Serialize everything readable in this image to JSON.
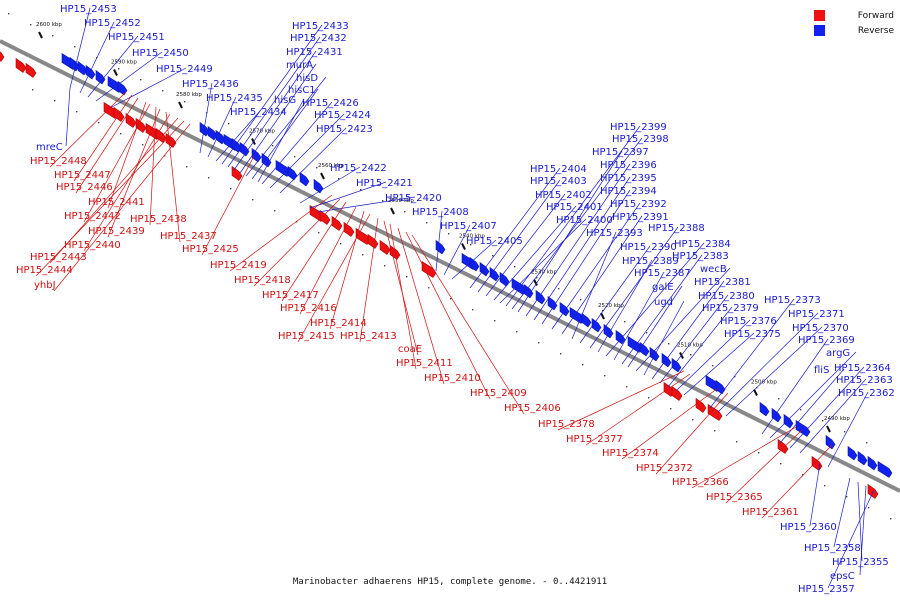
{
  "legend": {
    "forward_label": "Forward",
    "forward_color": "#ee1111",
    "reverse_label": "Reverse",
    "reverse_color": "#1122ee"
  },
  "caption": "Marinobacter adhaerens HP15, complete genome. - 0..4421911",
  "scale_ticks": [
    "2600 kbp",
    "2590 kbp",
    "2580 kbp",
    "2570 kbp",
    "2560 kbp",
    "2550 kbp",
    "2540 kbp",
    "2530 kbp",
    "2520 kbp",
    "2510 kbp",
    "2500 kbp",
    "2490 kbp"
  ],
  "reverse_labels": [
    "HP15_2453",
    "HP15_2452",
    "HP15_2451",
    "HP15_2450",
    "HP15_2449",
    "HP15_2436",
    "HP15_2435",
    "HP15_2434",
    "HP15_2433",
    "HP15_2432",
    "HP15_2431",
    "murA",
    "hisD",
    "hisC1",
    "hisG",
    "HP15_2426",
    "HP15_2424",
    "HP15_2423",
    "HP15_2422",
    "HP15_2421",
    "HP15_2420",
    "HP15_2408",
    "HP15_2407",
    "HP15_2405",
    "HP15_2404",
    "HP15_2403",
    "HP15_2402",
    "HP15_2401",
    "HP15_2400",
    "HP15_2399",
    "HP15_2398",
    "HP15_2397",
    "HP15_2396",
    "HP15_2395",
    "HP15_2394",
    "HP15_2392",
    "HP15_2391",
    "HP15_2393",
    "HP15_2390",
    "HP15_2388",
    "HP15_2389",
    "HP15_2384",
    "HP15_2387",
    "HP15_2383",
    "galE",
    "wecB",
    "ugd",
    "HP15_2381",
    "HP15_2380",
    "HP15_2379",
    "HP15_2376",
    "HP15_2375",
    "HP15_2373",
    "HP15_2371",
    "HP15_2370",
    "HP15_2369",
    "argG",
    "fliS",
    "HP15_2364",
    "HP15_2363",
    "HP15_2362",
    "mreC",
    "HP15_2360",
    "HP15_2358",
    "HP15_2355",
    "epsC",
    "HP15_2357"
  ],
  "forward_labels": [
    "HP15_2448",
    "HP15_2447",
    "HP15_2446",
    "HP15_2441",
    "HP15_2442",
    "HP15_2438",
    "HP15_2439",
    "HP15_2437",
    "HP15_2440",
    "HP15_2425",
    "HP15_2443",
    "HP15_2444",
    "yhbJ",
    "HP15_2419",
    "HP15_2418",
    "HP15_2417",
    "HP15_2416",
    "HP15_2414",
    "HP15_2415",
    "HP15_2413",
    "coaE",
    "HP15_2411",
    "HP15_2410",
    "HP15_2409",
    "HP15_2406",
    "HP15_2378",
    "HP15_2377",
    "HP15_2374",
    "HP15_2372",
    "HP15_2366",
    "HP15_2365",
    "HP15_2361"
  ]
}
